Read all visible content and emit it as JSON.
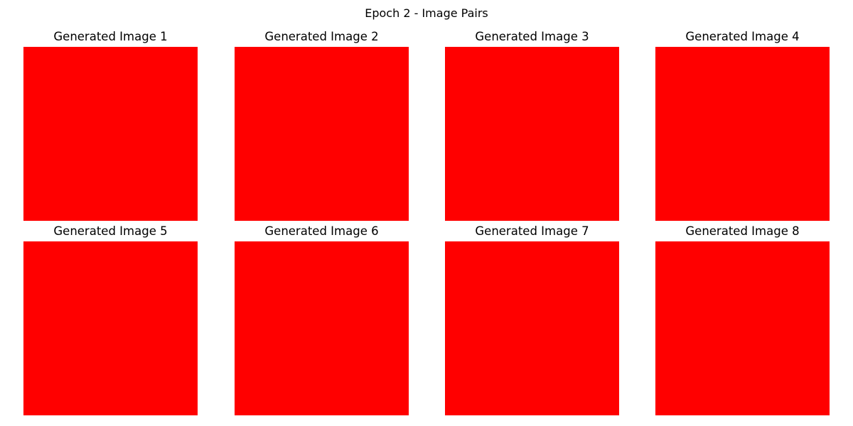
{
  "figure": {
    "title": "Epoch 2 - Image Pairs"
  },
  "colors": {
    "image_fill": "#ff0000",
    "background": "#ffffff"
  },
  "grid": {
    "rows": 2,
    "columns": 4
  },
  "panels": [
    {
      "title": "Generated Image 1"
    },
    {
      "title": "Generated Image 2"
    },
    {
      "title": "Generated Image 3"
    },
    {
      "title": "Generated Image 4"
    },
    {
      "title": "Generated Image 5"
    },
    {
      "title": "Generated Image 6"
    },
    {
      "title": "Generated Image 7"
    },
    {
      "title": "Generated Image 8"
    }
  ]
}
